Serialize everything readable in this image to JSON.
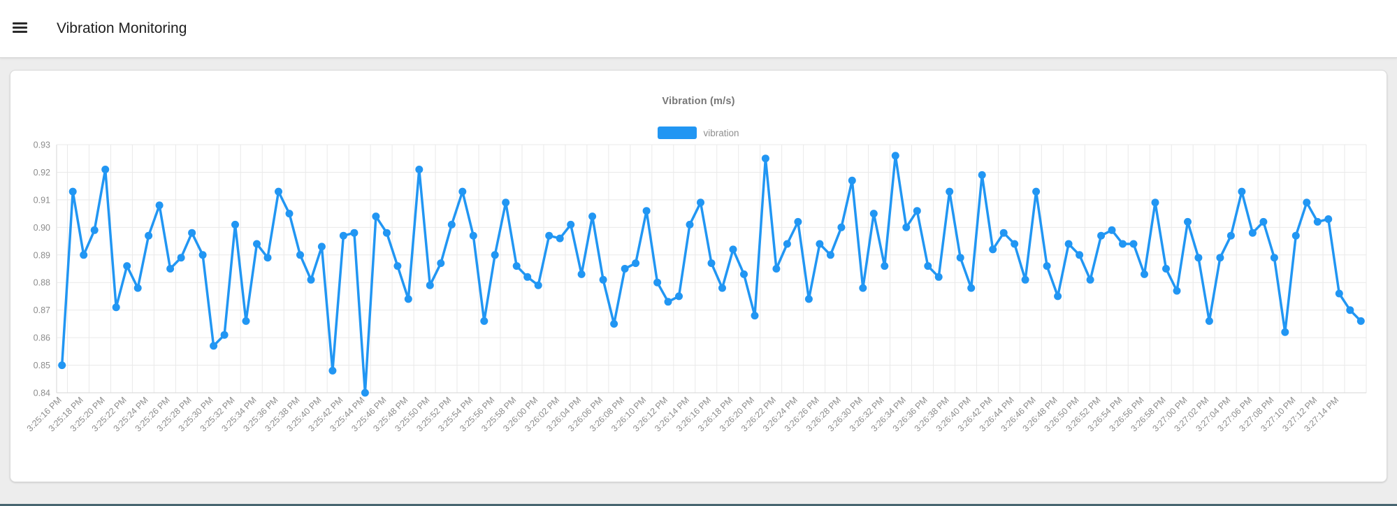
{
  "header": {
    "title": "Vibration Monitoring",
    "menu_icon": "hamburger-menu-icon"
  },
  "chart": {
    "title": "Vibration (m/s)",
    "legend_label": "vibration"
  },
  "theme": {
    "accent_blue": "#2196F3",
    "page_background": "#ededed",
    "card_background": "#ffffff",
    "grid_line": "#e9e9e9",
    "axis_line": "#d6d6d6",
    "tick_text": "#8c8c8c",
    "bottom_bar": "#476570"
  },
  "chart_data": {
    "type": "line",
    "title": "Vibration (m/s)",
    "series_name": "vibration",
    "line_color": "#2196F3",
    "grid": true,
    "legend_position": "top-center",
    "ylim": [
      0.84,
      0.93
    ],
    "y_ticks": [
      0.84,
      0.85,
      0.86,
      0.87,
      0.88,
      0.89,
      0.9,
      0.91,
      0.92,
      0.93
    ],
    "x_tick_labels": [
      "3:25:16 PM",
      "3:25:18 PM",
      "3:25:20 PM",
      "3:25:22 PM",
      "3:25:24 PM",
      "3:25:26 PM",
      "3:25:28 PM",
      "3:25:30 PM",
      "3:25:32 PM",
      "3:25:34 PM",
      "3:25:36 PM",
      "3:25:38 PM",
      "3:25:40 PM",
      "3:25:42 PM",
      "3:25:44 PM",
      "3:25:46 PM",
      "3:25:48 PM",
      "3:25:50 PM",
      "3:25:52 PM",
      "3:25:54 PM",
      "3:25:56 PM",
      "3:25:58 PM",
      "3:26:00 PM",
      "3:26:02 PM",
      "3:26:04 PM",
      "3:26:06 PM",
      "3:26:08 PM",
      "3:26:10 PM",
      "3:26:12 PM",
      "3:26:14 PM",
      "3:26:16 PM",
      "3:26:18 PM",
      "3:26:20 PM",
      "3:26:22 PM",
      "3:26:24 PM",
      "3:26:26 PM",
      "3:26:28 PM",
      "3:26:30 PM",
      "3:26:32 PM",
      "3:26:34 PM",
      "3:26:36 PM",
      "3:26:38 PM",
      "3:26:40 PM",
      "3:26:42 PM",
      "3:26:44 PM",
      "3:26:46 PM",
      "3:26:48 PM",
      "3:26:50 PM",
      "3:26:52 PM",
      "3:26:54 PM",
      "3:26:56 PM",
      "3:26:58 PM",
      "3:27:00 PM",
      "3:27:02 PM",
      "3:27:04 PM",
      "3:27:06 PM",
      "3:27:08 PM",
      "3:27:10 PM",
      "3:27:12 PM",
      "3:27:14 PM"
    ],
    "values": [
      0.85,
      0.913,
      0.89,
      0.899,
      0.921,
      0.871,
      0.886,
      0.878,
      0.897,
      0.908,
      0.885,
      0.889,
      0.898,
      0.89,
      0.857,
      0.861,
      0.901,
      0.866,
      0.894,
      0.889,
      0.913,
      0.905,
      0.89,
      0.881,
      0.893,
      0.848,
      0.897,
      0.898,
      0.84,
      0.904,
      0.898,
      0.886,
      0.874,
      0.921,
      0.879,
      0.887,
      0.901,
      0.913,
      0.897,
      0.866,
      0.89,
      0.909,
      0.886,
      0.882,
      0.879,
      0.897,
      0.896,
      0.901,
      0.883,
      0.904,
      0.881,
      0.865,
      0.885,
      0.887,
      0.906,
      0.88,
      0.873,
      0.875,
      0.901,
      0.909,
      0.887,
      0.878,
      0.892,
      0.883,
      0.868,
      0.925,
      0.885,
      0.894,
      0.902,
      0.874,
      0.894,
      0.89,
      0.9,
      0.917,
      0.878,
      0.905,
      0.886,
      0.926,
      0.9,
      0.906,
      0.886,
      0.882,
      0.913,
      0.889,
      0.878,
      0.919,
      0.892,
      0.898,
      0.894,
      0.881,
      0.913,
      0.886,
      0.875,
      0.894,
      0.89,
      0.881,
      0.897,
      0.899,
      0.894,
      0.894,
      0.883,
      0.909,
      0.885,
      0.877,
      0.902,
      0.889,
      0.866,
      0.889,
      0.897,
      0.913,
      0.898,
      0.902,
      0.889,
      0.862,
      0.897,
      0.909,
      0.902,
      0.903,
      0.876,
      0.87,
      0.866
    ]
  }
}
